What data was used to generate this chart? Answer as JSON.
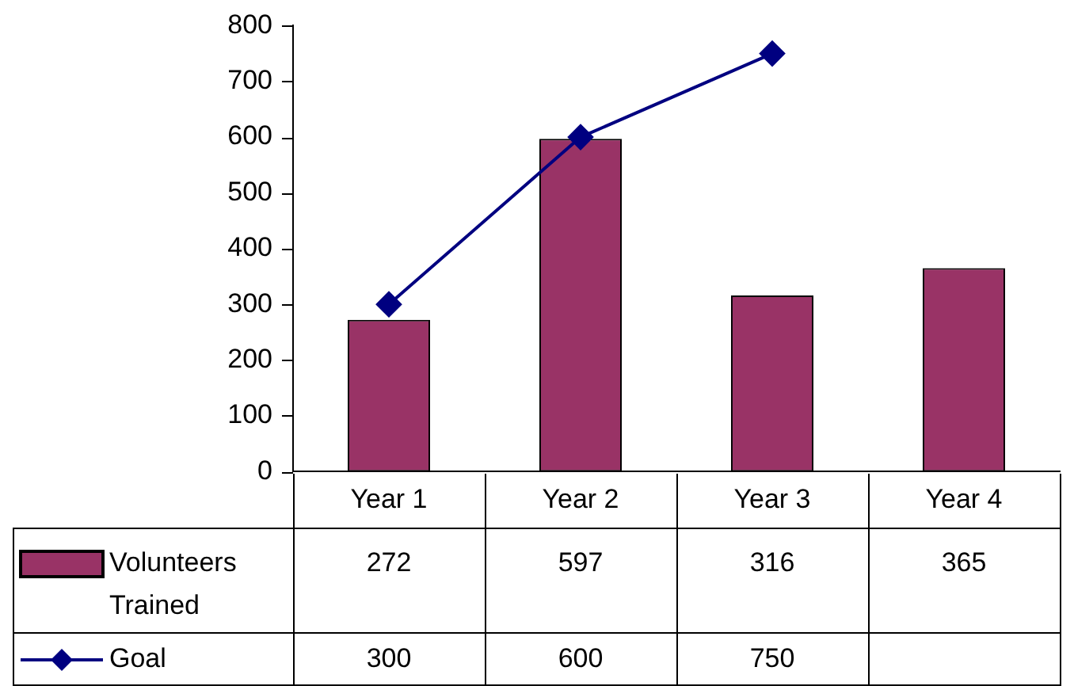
{
  "chart_data": {
    "type": "bar",
    "categories": [
      "Year 1",
      "Year 2",
      "Year 3",
      "Year 4"
    ],
    "series": [
      {
        "name": "Volunteers Trained",
        "color": "#993366",
        "values": [
          272,
          597,
          316,
          365
        ]
      },
      {
        "name": "Goal",
        "type": "line",
        "color": "#000080",
        "values": [
          300,
          600,
          750,
          null
        ]
      }
    ],
    "ylim": [
      0,
      800
    ],
    "yticks": [
      0,
      100,
      200,
      300,
      400,
      500,
      600,
      700,
      800
    ],
    "grid": false,
    "legend": "bottom",
    "data_labels": true,
    "marker": "diamond",
    "line_style": "solid"
  }
}
